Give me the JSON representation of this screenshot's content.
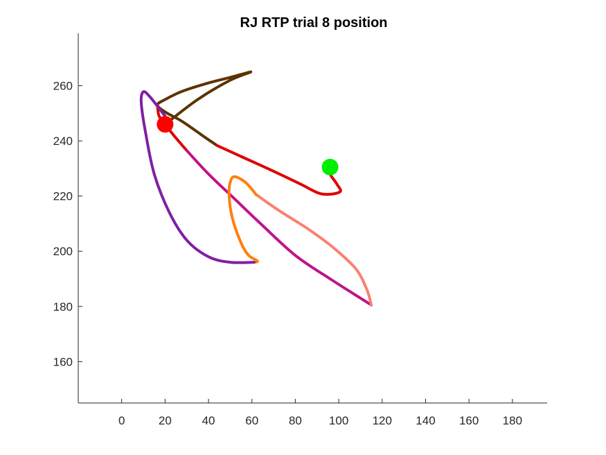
{
  "chart_data": {
    "type": "line",
    "title": "RJ  RTP trial 8 position",
    "xlabel": "",
    "ylabel": "",
    "xlim": [
      -20,
      196
    ],
    "ylim": [
      145,
      279
    ],
    "xticks": [
      0,
      20,
      40,
      60,
      80,
      100,
      120,
      140,
      160,
      180
    ],
    "yticks": [
      160,
      180,
      200,
      220,
      240,
      260
    ],
    "grid": false,
    "series": [
      {
        "color": "#5c3300",
        "points": [
          [
            20,
            246
          ],
          [
            35,
            255
          ],
          [
            50,
            262
          ],
          [
            59.5,
            265
          ],
          [
            50,
            263
          ],
          [
            40,
            261
          ],
          [
            28,
            258
          ],
          [
            20,
            255
          ],
          [
            16.5,
            253
          ],
          [
            20,
            250.5
          ],
          [
            28,
            247
          ],
          [
            38,
            241.5
          ],
          [
            44,
            238.3
          ]
        ]
      },
      {
        "color": "#e00000",
        "points": [
          [
            44,
            238.3
          ],
          [
            56,
            234
          ],
          [
            70,
            229
          ],
          [
            82,
            224.5
          ],
          [
            92,
            220.8
          ],
          [
            100.5,
            221.5
          ],
          [
            99,
            224.5
          ],
          [
            96,
            228
          ],
          [
            96,
            230.5
          ]
        ]
      },
      {
        "color": "#e00000",
        "points": [
          [
            16.5,
            253
          ],
          [
            17,
            249.5
          ],
          [
            18.5,
            247.5
          ],
          [
            20,
            246
          ],
          [
            24,
            242
          ],
          [
            28,
            238.3
          ],
          [
            30,
            236.5
          ]
        ]
      },
      {
        "color": "#c0128a",
        "points": [
          [
            30,
            236.5
          ],
          [
            40,
            228
          ],
          [
            52,
            219
          ],
          [
            64,
            210
          ],
          [
            80,
            198.5
          ],
          [
            96,
            190
          ],
          [
            108,
            184
          ],
          [
            113,
            181.5
          ],
          [
            115,
            180.5
          ]
        ]
      },
      {
        "color": "#fa8072",
        "points": [
          [
            115,
            180.5
          ],
          [
            113,
            186
          ],
          [
            108,
            193.5
          ],
          [
            98,
            201
          ],
          [
            86,
            208
          ],
          [
            72,
            215
          ],
          [
            62,
            220.5
          ]
        ]
      },
      {
        "color": "#ff7f0e",
        "points": [
          [
            62,
            220.5
          ],
          [
            57,
            225
          ],
          [
            52,
            227
          ],
          [
            50,
            225
          ],
          [
            49.5,
            220
          ],
          [
            51,
            212
          ],
          [
            55,
            203
          ],
          [
            58.5,
            198.5
          ],
          [
            62.5,
            196.5
          ],
          [
            61,
            196
          ]
        ]
      },
      {
        "color": "#7f1fa3",
        "points": [
          [
            61,
            196
          ],
          [
            50,
            196
          ],
          [
            40,
            198
          ],
          [
            30,
            204
          ],
          [
            22,
            214
          ],
          [
            15,
            228
          ],
          [
            11,
            243
          ],
          [
            9,
            254
          ],
          [
            10,
            257.8
          ],
          [
            13,
            256
          ],
          [
            18,
            251
          ],
          [
            20,
            249
          ]
        ]
      }
    ],
    "markers": [
      {
        "name": "start",
        "color": "#00ee00",
        "x": 96,
        "y": 230.5
      },
      {
        "name": "end",
        "color": "#ff0000",
        "x": 20,
        "y": 246
      }
    ]
  }
}
